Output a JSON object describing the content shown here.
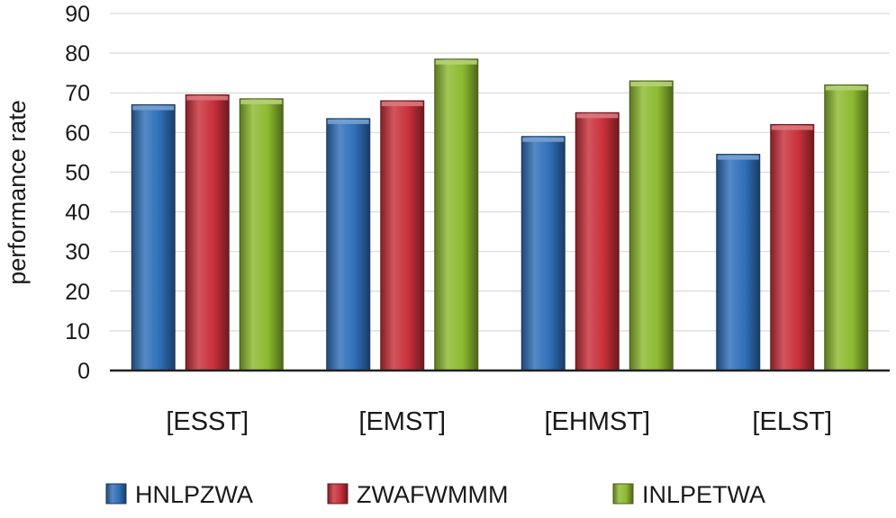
{
  "chart_data": {
    "type": "bar",
    "title": "",
    "xlabel": "",
    "ylabel": "performance rate",
    "categories": [
      "[ESST]",
      "[EMST]",
      "[EHMST]",
      "[ELST]"
    ],
    "series": [
      {
        "name": "HNLPZWA",
        "color": "#2f6fb8",
        "values": [
          67,
          63.5,
          59,
          54.5
        ]
      },
      {
        "name": "ZWAFWMMM",
        "color": "#c8303a",
        "values": [
          69.5,
          68,
          65,
          62
        ]
      },
      {
        "name": "INLPETWA",
        "color": "#8dba2f",
        "values": [
          68.5,
          78.5,
          73,
          72
        ]
      }
    ],
    "ylim": [
      0,
      90
    ],
    "yticks": [
      0,
      10,
      20,
      30,
      40,
      50,
      60,
      70,
      80,
      90
    ],
    "grid": true,
    "legend_position": "bottom"
  }
}
